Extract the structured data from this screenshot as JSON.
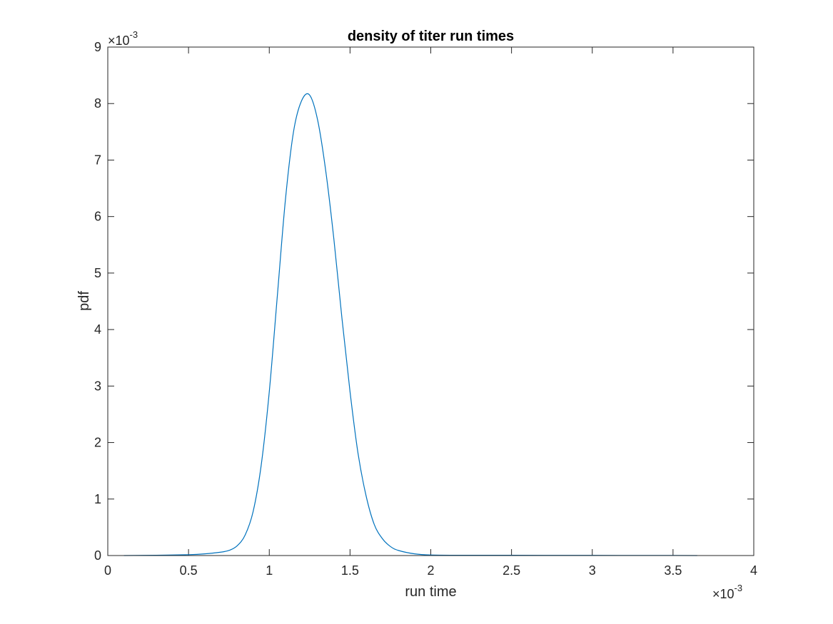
{
  "chart_data": {
    "type": "line",
    "title": "density of titer run times",
    "xlabel": "run time",
    "ylabel": "pdf",
    "x_exponent": {
      "times": "×10",
      "power": "-3"
    },
    "y_exponent": {
      "times": "×10",
      "power": "-3"
    },
    "xlim": [
      0,
      4
    ],
    "ylim": [
      0,
      9
    ],
    "x_ticks": [
      0,
      0.5,
      1,
      1.5,
      2,
      2.5,
      3,
      3.5,
      4
    ],
    "x_tick_labels": [
      "0",
      "0.5",
      "1",
      "1.5",
      "2",
      "2.5",
      "3",
      "3.5",
      "4"
    ],
    "y_ticks": [
      0,
      1,
      2,
      3,
      4,
      5,
      6,
      7,
      8,
      9
    ],
    "y_tick_labels": [
      "0",
      "1",
      "2",
      "3",
      "4",
      "5",
      "6",
      "7",
      "8",
      "9"
    ],
    "grid": false,
    "box": true,
    "line_color": "#0072BD",
    "axis_color": "#262626",
    "series": [
      {
        "x": [
          0.1,
          0.3,
          0.5,
          0.6,
          0.7,
          0.75,
          0.8,
          0.85,
          0.9,
          0.95,
          1.0,
          1.05,
          1.1,
          1.15,
          1.2,
          1.25,
          1.3,
          1.35,
          1.4,
          1.45,
          1.5,
          1.55,
          1.6,
          1.65,
          1.7,
          1.75,
          1.8,
          1.9,
          2.0,
          2.2,
          2.5,
          3.0,
          3.5,
          3.65
        ],
        "y": [
          0.0,
          0.005,
          0.015,
          0.03,
          0.06,
          0.09,
          0.17,
          0.36,
          0.78,
          1.6,
          2.9,
          4.6,
          6.3,
          7.5,
          8.05,
          8.15,
          7.7,
          6.8,
          5.6,
          4.2,
          2.9,
          1.8,
          1.05,
          0.55,
          0.3,
          0.16,
          0.09,
          0.03,
          0.01,
          0.005,
          0.005,
          0.003,
          0.002,
          0.0
        ]
      }
    ]
  }
}
